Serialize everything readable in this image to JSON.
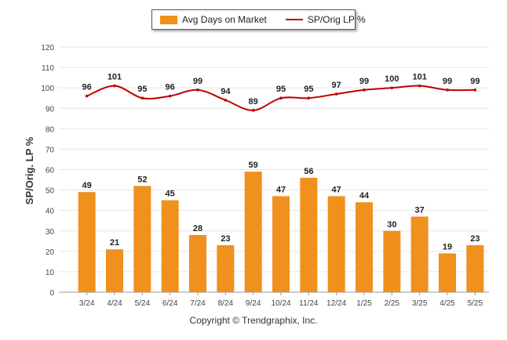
{
  "legend": {
    "bar_label": "Avg Days on Market",
    "line_label": "SP/Orig LP %"
  },
  "copyright": "Copyright © Trendgraphix, Inc.",
  "colors": {
    "bar": "#F0901D",
    "line": "#C00000",
    "grid": "#e6e6e6",
    "axis": "#999999"
  },
  "chart_data": {
    "type": "bar",
    "ylabel": "SP/Orig. LP %",
    "xlabel": "",
    "ylim": [
      0,
      120
    ],
    "yticks": [
      0,
      10,
      20,
      30,
      40,
      50,
      60,
      70,
      80,
      90,
      100,
      110,
      120
    ],
    "grid": true,
    "legend_position": "top-center",
    "categories": [
      "3/24",
      "4/24",
      "5/24",
      "6/24",
      "7/24",
      "8/24",
      "9/24",
      "10/24",
      "11/24",
      "12/24",
      "1/25",
      "2/25",
      "3/25",
      "4/25",
      "5/25"
    ],
    "series": [
      {
        "name": "Avg Days on Market",
        "type": "bar",
        "values": [
          49,
          21,
          52,
          45,
          28,
          23,
          59,
          47,
          56,
          47,
          44,
          30,
          37,
          19,
          23
        ]
      },
      {
        "name": "SP/Orig LP %",
        "type": "line",
        "values": [
          96,
          101,
          95,
          96,
          99,
          94,
          89,
          95,
          95,
          97,
          99,
          100,
          101,
          99,
          99
        ]
      }
    ]
  }
}
